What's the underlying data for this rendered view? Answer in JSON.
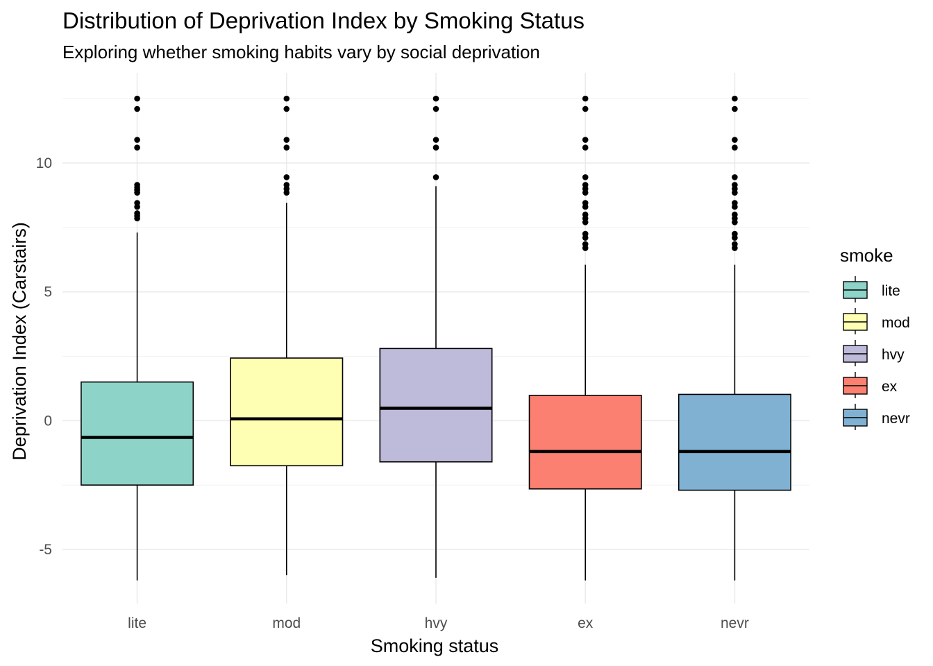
{
  "chart_data": {
    "type": "boxplot",
    "title": "Distribution of Deprivation Index by Smoking Status",
    "subtitle": "Exploring whether smoking habits vary by social deprivation",
    "xlabel": "Smoking status",
    "ylabel": "Deprivation Index (Carstairs)",
    "ylim": [
      -7.1,
      13.5
    ],
    "y_ticks": [
      -5,
      0,
      5,
      10
    ],
    "y_tick_labels": [
      "-5",
      "0",
      "5",
      "10"
    ],
    "grid": true,
    "legend": {
      "title": "smoke",
      "position": "right"
    },
    "categories": [
      "lite",
      "mod",
      "hvy",
      "ex",
      "nevr"
    ],
    "series": [
      {
        "name": "lite",
        "color": "#8DD3C7",
        "lower_whisker": -6.2,
        "q1": -2.5,
        "median": -0.65,
        "q3": 1.5,
        "upper_whisker": 7.3,
        "outliers": [
          12.5,
          12.1,
          10.9,
          10.6,
          9.15,
          9.05,
          8.95,
          8.85,
          8.45,
          8.3,
          8.05,
          7.95,
          7.85
        ]
      },
      {
        "name": "mod",
        "color": "#FFFFB3",
        "lower_whisker": -6.0,
        "q1": -1.75,
        "median": 0.07,
        "q3": 2.43,
        "upper_whisker": 8.45,
        "outliers": [
          12.5,
          12.1,
          10.9,
          10.6,
          9.45,
          9.15,
          9.0,
          8.85
        ]
      },
      {
        "name": "hvy",
        "color": "#BEBADA",
        "lower_whisker": -6.1,
        "q1": -1.6,
        "median": 0.48,
        "q3": 2.8,
        "upper_whisker": 9.1,
        "outliers": [
          12.5,
          12.1,
          10.9,
          10.6,
          9.45
        ]
      },
      {
        "name": "ex",
        "color": "#FB8072",
        "lower_whisker": -6.2,
        "q1": -2.65,
        "median": -1.2,
        "q3": 0.98,
        "upper_whisker": 6.05,
        "outliers": [
          12.5,
          12.1,
          10.9,
          10.6,
          9.45,
          9.15,
          9.0,
          8.85,
          8.45,
          8.3,
          8.0,
          7.85,
          7.7,
          7.25,
          7.1,
          6.85,
          6.7
        ]
      },
      {
        "name": "nevr",
        "color": "#80B1D3",
        "lower_whisker": -6.2,
        "q1": -2.7,
        "median": -1.2,
        "q3": 1.02,
        "upper_whisker": 6.05,
        "outliers": [
          12.5,
          12.1,
          10.9,
          10.6,
          9.45,
          9.15,
          9.0,
          8.85,
          8.45,
          8.3,
          8.0,
          7.85,
          7.7,
          7.25,
          7.1,
          6.85,
          6.7
        ]
      }
    ]
  }
}
